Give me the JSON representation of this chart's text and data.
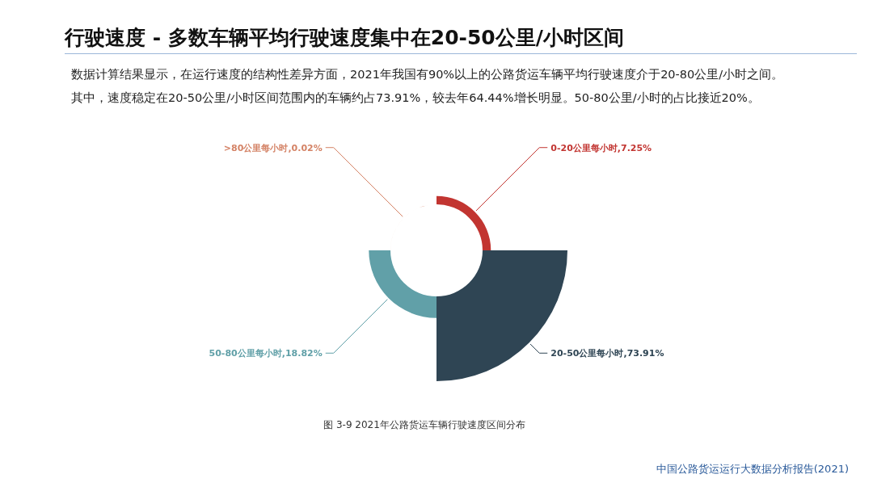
{
  "chart_data": {
    "type": "other",
    "title": "行驶速度 - 多数车辆平均行驶速度集中在20-50公里/小时区间",
    "subtitle": "数据计算结果显示，在运行速度的结构性差异方面，2021年我国有90%以上的公路货运车辆平均行驶速度介于20-80公里/小时之间。其中，速度稳定在20-50公里/小时区间范围内的车辆约占73.91%，较去年64.44%增长明显。50-80公里/小时的占比接近20%。",
    "annotations": [
      "图 3-9 2021年公路货运车辆行驶速度区间分布",
      "中国公路货运运行大数据分析报告(2021)"
    ],
    "categories": [
      "0-20公里每小时",
      "20-50公里每小时",
      "50-80公里每小时",
      ">80公里每小时"
    ],
    "value_labels": [
      ",7.25%",
      ",73.91%",
      ",18.82%",
      ",0.02%"
    ],
    "values": [
      7.25,
      73.91,
      18.82,
      0.02
    ],
    "colors": [
      "#c23531",
      "#2f4554",
      "#61a0a8",
      "#d48265"
    ]
  }
}
